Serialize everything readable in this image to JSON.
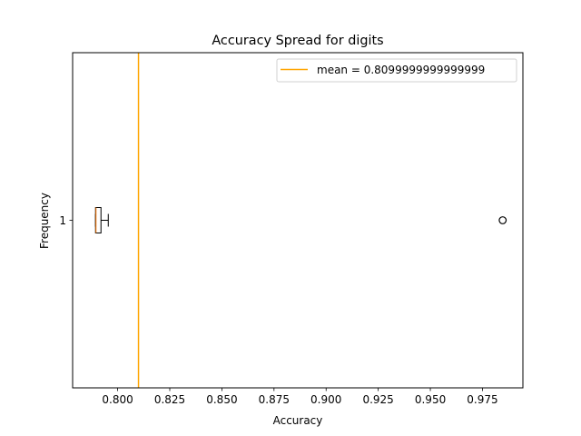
{
  "chart_data": {
    "type": "box",
    "orientation": "horizontal",
    "title": "Accuracy Spread for digits",
    "xlabel": "Accuracy",
    "ylabel": "Frequency",
    "xlim": [
      0.7784,
      0.9944
    ],
    "ylim": [
      0.5,
      1.5
    ],
    "x_ticks": [
      0.8,
      0.825,
      0.85,
      0.875,
      0.9,
      0.925,
      0.95,
      0.975
    ],
    "x_tick_labels": [
      "0.800",
      "0.825",
      "0.850",
      "0.875",
      "0.900",
      "0.925",
      "0.950",
      "0.975"
    ],
    "y_ticks": [
      1
    ],
    "y_tick_labels": [
      "1"
    ],
    "boxes": [
      {
        "position": 1,
        "whisker_low": 0.7894,
        "q1": 0.7894,
        "median": 0.7894,
        "q3": 0.792,
        "whisker_high": 0.7955,
        "box_color": "#000000",
        "median_color": "#ff7f0e",
        "outliers": [
          0.9847
        ]
      }
    ],
    "reference_lines": [
      {
        "orientation": "vertical",
        "x": 0.81,
        "color": "#ffa500",
        "label": "mean = 0.8099999999999999"
      }
    ],
    "legend": {
      "position": "upper right",
      "entries": [
        "mean = 0.8099999999999999"
      ]
    },
    "grid": false
  }
}
